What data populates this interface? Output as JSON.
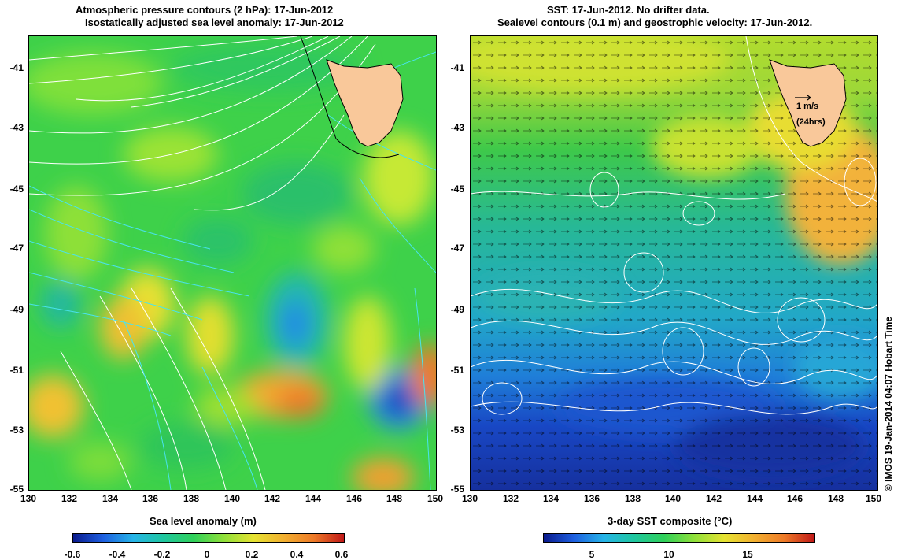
{
  "left_panel": {
    "title_line1": "Atmospheric pressure contours (2 hPa): 17-Jun-2012",
    "title_line2": "Isostatically adjusted sea level anomaly: 17-Jun-2012",
    "y_ticks": [
      "-41",
      "-43",
      "-45",
      "-47",
      "-49",
      "-51",
      "-53",
      "-55"
    ],
    "x_ticks": [
      "130",
      "132",
      "134",
      "136",
      "138",
      "140",
      "142",
      "144",
      "146",
      "148",
      "150"
    ],
    "colorbar_title": "Sea level anomaly (m)",
    "colorbar_ticks": [
      "-0.6",
      "-0.4",
      "-0.2",
      "0",
      "0.2",
      "0.4",
      "0.6"
    ]
  },
  "right_panel": {
    "title_line1": "SST: 17-Jun-2012. No drifter data.",
    "title_line2": "Sealevel contours (0.1 m) and geostrophic velocity: 17-Jun-2012.",
    "y_ticks": [
      "-41",
      "-43",
      "-45",
      "-47",
      "-49",
      "-51",
      "-53",
      "-55"
    ],
    "x_ticks": [
      "130",
      "132",
      "134",
      "136",
      "138",
      "140",
      "142",
      "144",
      "146",
      "148",
      "150"
    ],
    "colorbar_title": "3-day SST composite (°C)",
    "colorbar_ticks": [
      "5",
      "10",
      "15"
    ],
    "velocity_scale_line1": "1 m/s",
    "velocity_scale_line2": "(24hrs)"
  },
  "credit": "© IMOS 19-Jan-2014 04:07 Hobart Time",
  "colors": {
    "land": "#f9c89a",
    "slab_base": "#3ed14a",
    "sst_warm": "#f2b23a",
    "sst_cold": "#1540c8",
    "contour_white": "#ffffff",
    "contour_cyan": "#49e3ef"
  }
}
